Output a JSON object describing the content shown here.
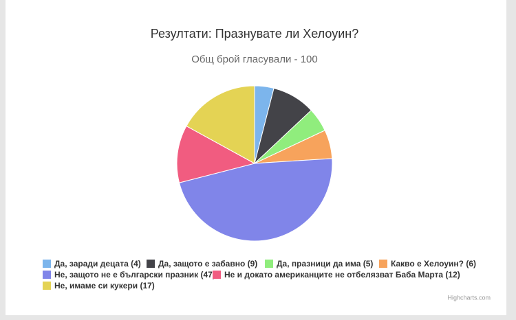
{
  "chart_data": {
    "type": "pie",
    "title": "Резултати: Празнувате ли Хелоуин?",
    "subtitle": "Общ брой гласували - 100",
    "categories": [
      "Да, заради децата (4)",
      "Да, защото е забавно (9)",
      "Да, празници да има (5)",
      "Какво е Хелоуин? (6)",
      "Не, защото не е български празник (47)",
      "Не и докато американците не отбелязват Баба Марта (12)",
      "Не, имаме си кукери (17)"
    ],
    "values": [
      4,
      9,
      5,
      6,
      47,
      12,
      17
    ],
    "colors": [
      "#7cb5ec",
      "#434348",
      "#90ed7d",
      "#f7a35c",
      "#8085e9",
      "#f15c80",
      "#e4d354"
    ],
    "legend": "bottom",
    "credits": "Highcharts.com"
  }
}
